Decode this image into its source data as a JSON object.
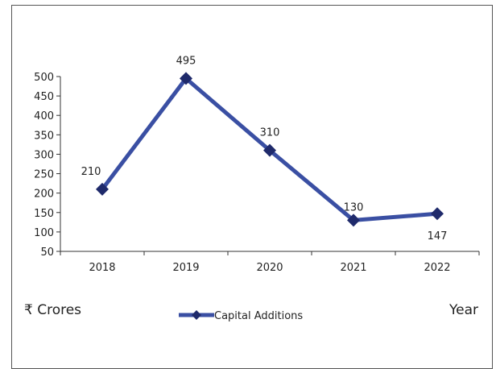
{
  "chart_data": {
    "type": "line",
    "categories": [
      "2018",
      "2019",
      "2020",
      "2021",
      "2022"
    ],
    "series": [
      {
        "name": "Capital Additions",
        "values": [
          210,
          495,
          310,
          130,
          147
        ],
        "color": "#3a4fa3"
      }
    ],
    "data_labels": [
      "210",
      "495",
      "310",
      "130",
      "147"
    ],
    "y_ticks": [
      50,
      100,
      150,
      200,
      250,
      300,
      350,
      400,
      450,
      500
    ],
    "ylim": [
      50,
      500
    ],
    "ylabel": "₹ Crores",
    "xlabel": "Year",
    "title": "",
    "grid": false,
    "legend_position": "bottom",
    "marker": "diamond"
  }
}
